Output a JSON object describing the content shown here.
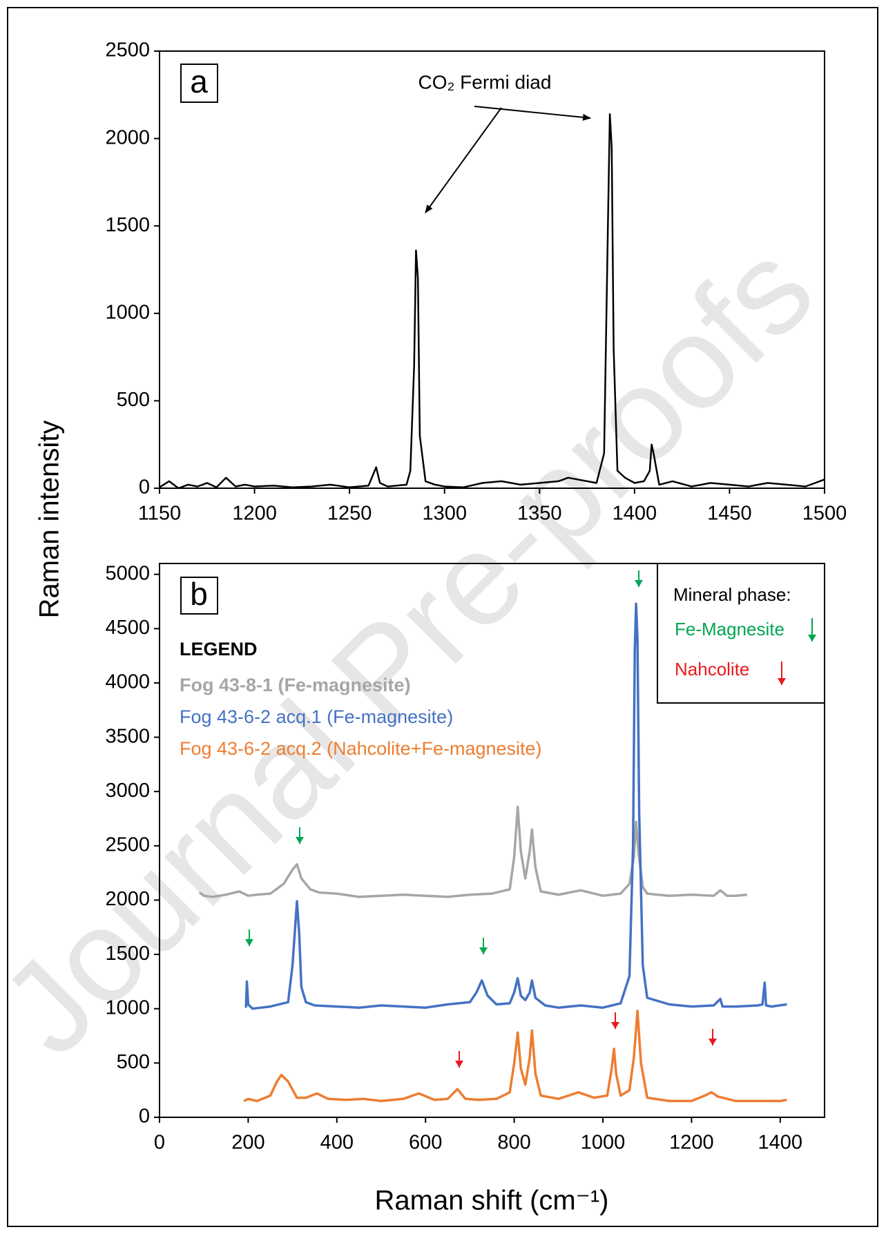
{
  "watermark": "Journal Pre-proofs",
  "ylabel": "Raman intensity",
  "chart_data": [
    {
      "type": "line",
      "panel": "a",
      "annotation": "CO₂ Fermi diad",
      "color": "#000000",
      "x": [
        1150,
        1155,
        1160,
        1165,
        1170,
        1175,
        1180,
        1185,
        1190,
        1195,
        1200,
        1210,
        1220,
        1230,
        1240,
        1250,
        1260,
        1264,
        1266,
        1270,
        1280,
        1282,
        1284,
        1285,
        1286,
        1287,
        1290,
        1295,
        1300,
        1310,
        1320,
        1330,
        1340,
        1350,
        1360,
        1365,
        1370,
        1375,
        1380,
        1384,
        1386,
        1387,
        1388,
        1389,
        1391,
        1395,
        1400,
        1405,
        1408,
        1409,
        1410,
        1413,
        1420,
        1430,
        1440,
        1450,
        1460,
        1470,
        1480,
        1490,
        1500
      ],
      "values": [
        5,
        40,
        0,
        20,
        10,
        30,
        5,
        60,
        10,
        20,
        10,
        15,
        5,
        10,
        20,
        5,
        15,
        120,
        30,
        10,
        20,
        100,
        700,
        1360,
        1200,
        300,
        40,
        20,
        10,
        5,
        30,
        40,
        20,
        30,
        40,
        60,
        50,
        40,
        30,
        200,
        1500,
        2140,
        1950,
        800,
        100,
        60,
        30,
        40,
        100,
        250,
        200,
        20,
        40,
        10,
        30,
        20,
        10,
        30,
        20,
        10,
        50
      ],
      "xlim": [
        1150,
        1500
      ],
      "xticks": [
        1150,
        1200,
        1250,
        1300,
        1350,
        1400,
        1450,
        1500
      ],
      "ylim": [
        0,
        2500
      ],
      "yticks": [
        0,
        500,
        1000,
        1500,
        2000,
        2500
      ],
      "grid": false
    },
    {
      "type": "line",
      "panel": "b",
      "xlabel": "Raman shift (cm⁻¹)",
      "legend_title": "LEGEND",
      "mineral_phase": {
        "title": "Mineral phase:",
        "items": [
          {
            "label": "Fe-Magnesite",
            "color": "#00a651"
          },
          {
            "label": "Nahcolite",
            "color": "#e8191d"
          }
        ]
      },
      "xlim": [
        0,
        1500
      ],
      "xticks": [
        0,
        200,
        400,
        600,
        800,
        1000,
        1200,
        1400
      ],
      "ylim": [
        0,
        5100
      ],
      "yticks": [
        0,
        500,
        1000,
        1500,
        2000,
        2500,
        3000,
        3500,
        4000,
        4500,
        5000
      ],
      "grid": false,
      "series": [
        {
          "name": "Fog 43-8-1 (Fe-magnesite)",
          "color": "#a6a6a6",
          "x": [
            90,
            100,
            120,
            150,
            180,
            190,
            200,
            220,
            250,
            280,
            300,
            310,
            320,
            340,
            360,
            400,
            450,
            500,
            550,
            600,
            650,
            700,
            750,
            790,
            800,
            808,
            815,
            825,
            835,
            840,
            848,
            860,
            900,
            950,
            1000,
            1040,
            1060,
            1070,
            1075,
            1080,
            1090,
            1100,
            1150,
            1200,
            1250,
            1265,
            1280,
            1300,
            1325
          ],
          "values": [
            2070,
            2040,
            2030,
            2050,
            2080,
            2060,
            2040,
            2050,
            2060,
            2150,
            2280,
            2330,
            2200,
            2100,
            2070,
            2060,
            2030,
            2040,
            2050,
            2040,
            2030,
            2050,
            2060,
            2100,
            2400,
            2860,
            2450,
            2200,
            2450,
            2650,
            2300,
            2080,
            2050,
            2090,
            2040,
            2060,
            2150,
            2400,
            2720,
            2450,
            2120,
            2060,
            2040,
            2050,
            2040,
            2090,
            2040,
            2040,
            2050
          ]
        },
        {
          "name": "Fog 43-6-2 acq.1 (Fe-magnesite)",
          "color": "#4472c4",
          "x": [
            195,
            197,
            200,
            210,
            250,
            290,
            300,
            310,
            315,
            320,
            330,
            350,
            400,
            450,
            500,
            550,
            600,
            650,
            700,
            715,
            727,
            740,
            760,
            790,
            800,
            808,
            815,
            825,
            835,
            840,
            848,
            870,
            900,
            950,
            1000,
            1040,
            1060,
            1068,
            1072,
            1075,
            1078,
            1082,
            1090,
            1100,
            1150,
            1200,
            1250,
            1265,
            1270,
            1300,
            1350,
            1360,
            1365,
            1368,
            1380,
            1415
          ],
          "values": [
            1010,
            1250,
            1040,
            1000,
            1020,
            1060,
            1400,
            1990,
            1700,
            1200,
            1060,
            1030,
            1020,
            1010,
            1030,
            1020,
            1010,
            1040,
            1060,
            1150,
            1260,
            1120,
            1040,
            1050,
            1150,
            1280,
            1120,
            1080,
            1150,
            1260,
            1100,
            1030,
            1010,
            1030,
            1010,
            1050,
            1300,
            2500,
            4300,
            4730,
            4400,
            2800,
            1400,
            1100,
            1040,
            1020,
            1030,
            1090,
            1020,
            1020,
            1030,
            1040,
            1240,
            1030,
            1020,
            1040
          ]
        },
        {
          "name": "Fog 43-6-2 acq.2 (Nahcolite+Fe-magnesite)",
          "color": "#ed7d31",
          "x": [
            190,
            200,
            220,
            250,
            265,
            275,
            290,
            310,
            330,
            355,
            380,
            420,
            460,
            500,
            550,
            585,
            620,
            650,
            672,
            690,
            720,
            760,
            790,
            800,
            808,
            815,
            825,
            835,
            840,
            848,
            860,
            900,
            945,
            980,
            1010,
            1020,
            1025,
            1030,
            1040,
            1060,
            1070,
            1078,
            1086,
            1100,
            1150,
            1200,
            1230,
            1245,
            1260,
            1300,
            1350,
            1400,
            1415
          ],
          "values": [
            150,
            170,
            150,
            200,
            330,
            390,
            330,
            180,
            180,
            220,
            170,
            160,
            170,
            150,
            170,
            220,
            160,
            170,
            260,
            170,
            160,
            170,
            230,
            500,
            780,
            450,
            300,
            550,
            800,
            400,
            200,
            170,
            230,
            180,
            200,
            450,
            630,
            400,
            200,
            250,
            550,
            980,
            500,
            180,
            150,
            150,
            200,
            230,
            190,
            150,
            150,
            150,
            160
          ]
        }
      ]
    }
  ]
}
